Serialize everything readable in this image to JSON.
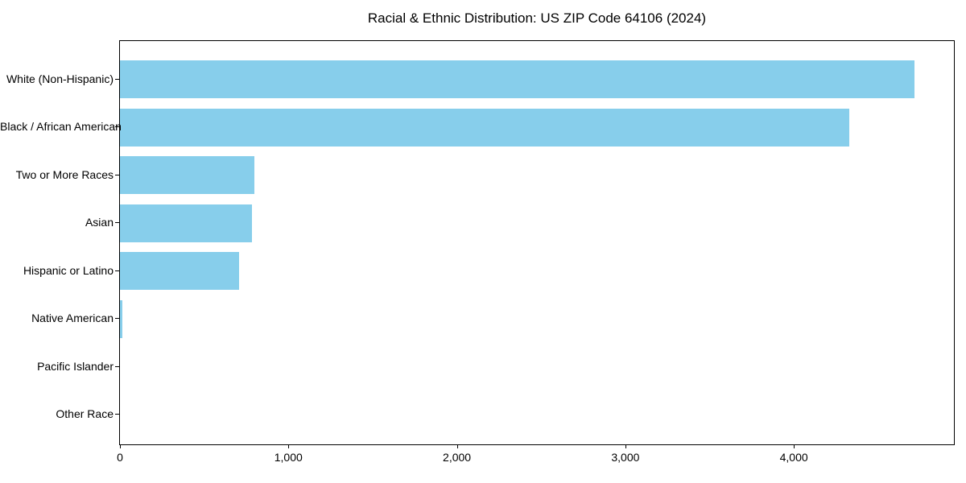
{
  "chart_data": {
    "type": "bar",
    "orientation": "horizontal",
    "title": "Racial & Ethnic Distribution: US ZIP Code 64106 (2024)",
    "xlabel": "",
    "ylabel": "",
    "categories": [
      "White (Non-Hispanic)",
      "Black / African American",
      "Two or More Races",
      "Asian",
      "Hispanic or Latino",
      "Native American",
      "Pacific Islander",
      "Other Race"
    ],
    "values": [
      4716,
      4329,
      797,
      783,
      706,
      12,
      0,
      0
    ],
    "x_ticks": [
      {
        "value": 0,
        "label": "0"
      },
      {
        "value": 1000,
        "label": "1,000"
      },
      {
        "value": 2000,
        "label": "2,000"
      },
      {
        "value": 3000,
        "label": "3,000"
      },
      {
        "value": 4000,
        "label": "4,000"
      }
    ],
    "xlim": [
      0,
      4950
    ],
    "grid": false,
    "legend": false,
    "colors": {
      "bar": "#87CEEB",
      "text": "#000000",
      "spine": "#000000"
    }
  }
}
